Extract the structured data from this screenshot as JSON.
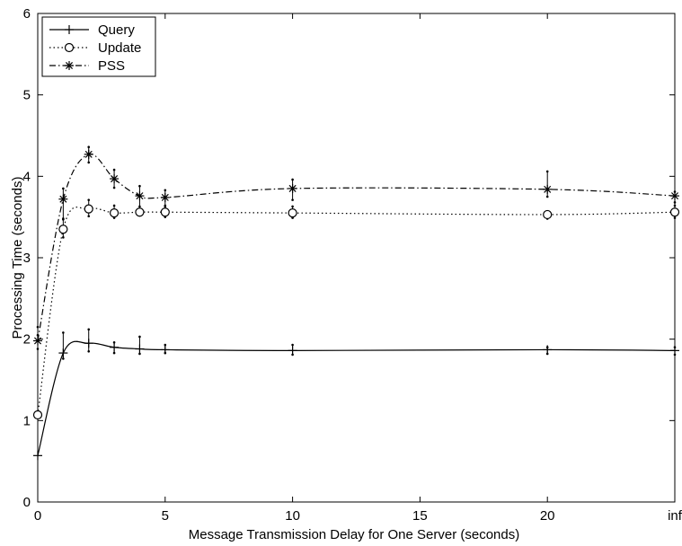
{
  "chart_data": {
    "type": "line",
    "title": "",
    "xlabel": "Message Transmission Delay for One Server (seconds)",
    "ylabel": "Processing Time (seconds)",
    "x_tick_labels": [
      "0",
      "5",
      "10",
      "15",
      "20",
      "inf"
    ],
    "y_tick_labels": [
      "0",
      "1",
      "2",
      "3",
      "4",
      "5",
      "6"
    ],
    "ylim": [
      0,
      6
    ],
    "grid": false,
    "legend_position": "top-left",
    "x": [
      0,
      1,
      2,
      3,
      4,
      5,
      10,
      20,
      "inf"
    ],
    "series": [
      {
        "name": "Query",
        "line_style": "solid",
        "marker": "plus",
        "values": [
          0.57,
          1.83,
          1.95,
          1.9,
          1.88,
          1.87,
          1.86,
          1.87,
          1.86
        ],
        "error_low": [
          0.57,
          1.76,
          1.85,
          1.83,
          1.82,
          1.83,
          1.81,
          1.82,
          1.81
        ],
        "error_high": [
          0.57,
          2.08,
          2.12,
          1.96,
          2.03,
          1.93,
          1.93,
          1.9,
          1.9
        ]
      },
      {
        "name": "Update",
        "line_style": "dotted",
        "marker": "circle",
        "values": [
          1.07,
          3.35,
          3.6,
          3.55,
          3.56,
          3.56,
          3.55,
          3.53,
          3.56
        ],
        "error_low": [
          1.07,
          3.25,
          3.51,
          3.49,
          3.52,
          3.5,
          3.49,
          3.48,
          3.49
        ],
        "error_high": [
          2.15,
          3.47,
          3.71,
          3.64,
          3.6,
          3.64,
          3.63,
          3.57,
          3.64
        ]
      },
      {
        "name": "PSS",
        "line_style": "dash-dot",
        "marker": "asterisk",
        "values": [
          1.98,
          3.72,
          4.27,
          3.97,
          3.76,
          3.74,
          3.85,
          3.84,
          3.76
        ],
        "error_low": [
          1.88,
          3.48,
          4.17,
          3.86,
          3.63,
          3.63,
          3.71,
          3.75,
          3.68
        ],
        "error_high": [
          2.05,
          3.85,
          4.36,
          4.08,
          3.88,
          3.83,
          3.96,
          4.06,
          3.81
        ]
      }
    ]
  }
}
